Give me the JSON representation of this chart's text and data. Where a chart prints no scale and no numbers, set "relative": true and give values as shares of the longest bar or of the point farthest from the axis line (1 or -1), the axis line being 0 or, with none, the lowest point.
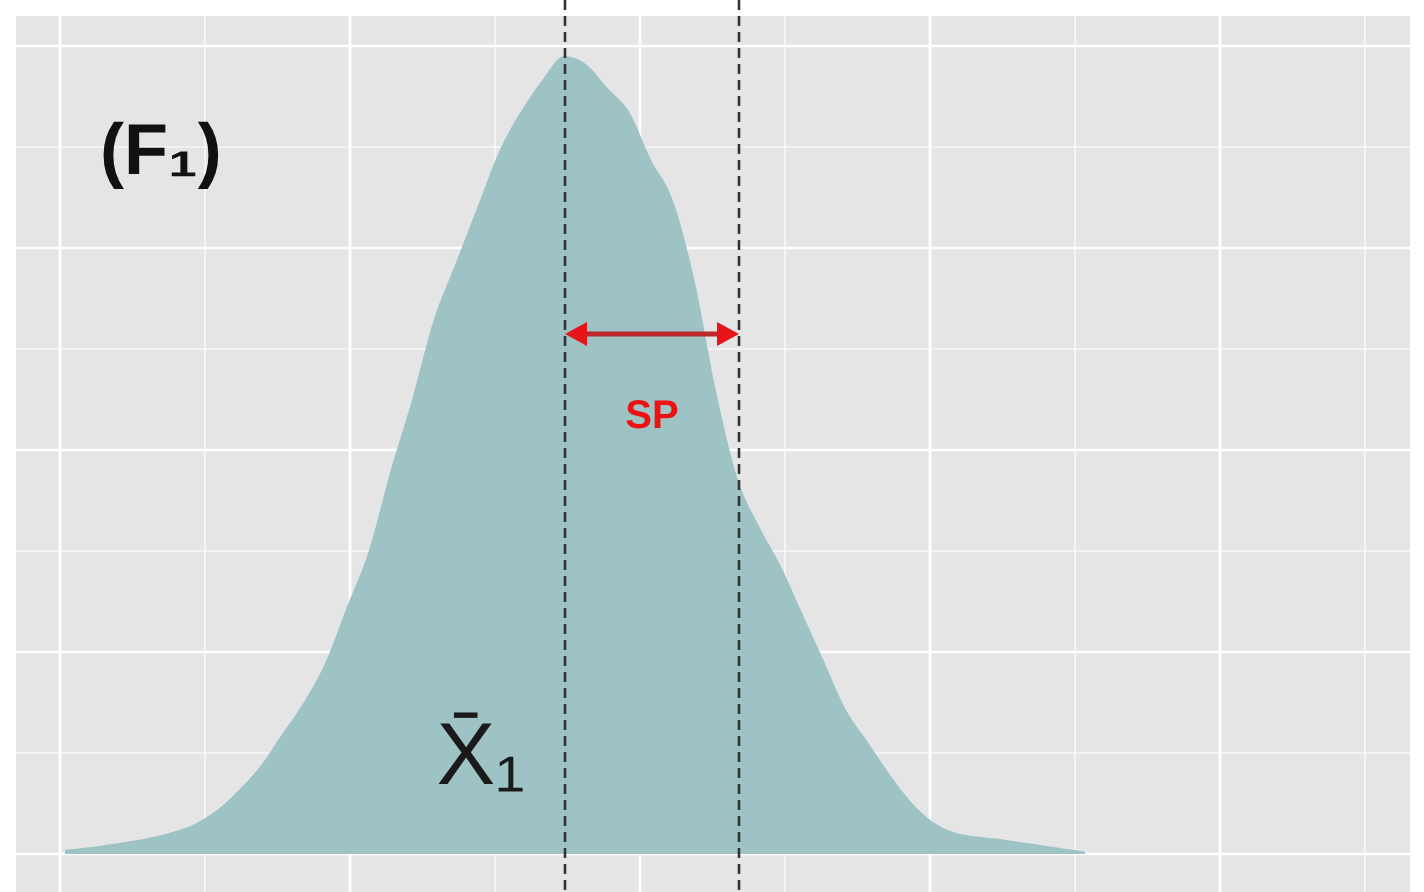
{
  "chart_data": {
    "type": "area",
    "title": "(F₁)",
    "relative": true,
    "color": "#9dc3c5",
    "grid": true,
    "categories": [
      null,
      null,
      null,
      null,
      null,
      null,
      null,
      null,
      null,
      null,
      null,
      null,
      null,
      null,
      null,
      null,
      null,
      null,
      null,
      null,
      null,
      null,
      null,
      null,
      null,
      null,
      null,
      null,
      null,
      null,
      null,
      null,
      null,
      null,
      null,
      null,
      null,
      null,
      null,
      null,
      null,
      null,
      null,
      null,
      null,
      null,
      null,
      null,
      null,
      null,
      null,
      null,
      null,
      null,
      null,
      null,
      null,
      null,
      null,
      null,
      null,
      null
    ],
    "values": [
      0.005,
      0.008,
      0.012,
      0.016,
      0.021,
      0.028,
      0.038,
      0.055,
      0.08,
      0.11,
      0.15,
      0.19,
      0.24,
      0.31,
      0.38,
      0.48,
      0.57,
      0.67,
      0.74,
      0.81,
      0.88,
      0.93,
      0.97,
      1,
      0.99,
      0.96,
      0.93,
      0.87,
      0.82,
      0.72,
      0.58,
      0.47,
      0.41,
      0.36,
      0.3,
      0.24,
      0.18,
      0.14,
      0.1,
      0.065,
      0.04,
      0.027,
      0.022,
      0.019,
      0.015,
      0.011,
      0.007,
      0.003,
      null,
      null,
      null,
      null,
      null,
      null,
      null,
      null,
      null,
      null,
      null,
      null,
      null,
      null
    ],
    "annotations": [
      "X̄₁",
      "SP"
    ]
  }
}
